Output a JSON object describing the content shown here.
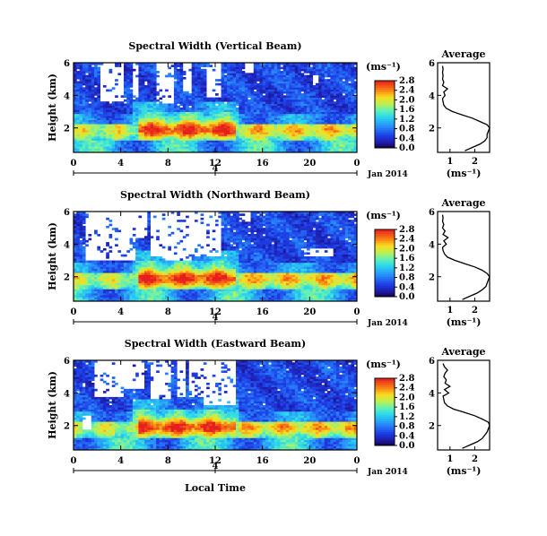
{
  "x_axis_label": "Local Time",
  "date_label": "Jan 2014",
  "unit_label": "(ms⁻¹)",
  "avg_title": "Average",
  "y_label": "Height (km)",
  "chart_data": [
    {
      "type": "heatmap",
      "title": "Spectral Width (Vertical Beam)",
      "ylabel": "Height (km)",
      "xlabel": "Local Time",
      "x_ticks": [
        "0",
        "4",
        "8",
        "12",
        "16",
        "20",
        "0"
      ],
      "xlim": [
        0,
        24
      ],
      "day_marker": "4",
      "y_ticks": [
        "2",
        "4",
        "6"
      ],
      "ylim": [
        0.5,
        6
      ],
      "colorbar": {
        "label": "(ms⁻¹)",
        "ticks": [
          "0.0",
          "0.4",
          "0.8",
          "1.2",
          "1.6",
          "2.0",
          "2.4",
          "2.8"
        ],
        "range": [
          0,
          2.8
        ]
      },
      "average_profile": {
        "title": "Average",
        "xlabel": "(ms⁻¹)",
        "x_ticks": [
          "1",
          "2"
        ],
        "xlim": [
          0.5,
          2.6
        ],
        "y_ticks": [
          "2",
          "4",
          "6"
        ],
        "ylim": [
          0.5,
          6
        ],
        "height": [
          0.6,
          0.8,
          1.0,
          1.2,
          1.4,
          1.6,
          1.8,
          2.0,
          2.2,
          2.4,
          2.6,
          2.8,
          3.0,
          3.2,
          3.4,
          3.6,
          3.8,
          4.0,
          4.2,
          4.4,
          4.6,
          4.8,
          5.0,
          5.2,
          5.4,
          5.6,
          5.8
        ],
        "width": [
          1.6,
          1.9,
          2.2,
          2.4,
          2.5,
          2.5,
          2.55,
          2.6,
          2.5,
          2.2,
          1.9,
          1.5,
          1.1,
          0.85,
          0.75,
          0.72,
          0.7,
          0.8,
          0.75,
          0.9,
          0.7,
          0.75,
          0.7,
          0.72,
          0.7,
          0.72,
          0.7
        ]
      }
    },
    {
      "type": "heatmap",
      "title": "Spectral Width (Northward Beam)",
      "ylabel": "Height (km)",
      "xlabel": "Local Time",
      "x_ticks": [
        "0",
        "4",
        "8",
        "12",
        "16",
        "20",
        "0"
      ],
      "xlim": [
        0,
        24
      ],
      "day_marker": "4",
      "y_ticks": [
        "2",
        "4",
        "6"
      ],
      "ylim": [
        0.5,
        6
      ],
      "colorbar": {
        "label": "(ms⁻¹)",
        "ticks": [
          "0.0",
          "0.4",
          "0.8",
          "1.2",
          "1.6",
          "2.0",
          "2.4",
          "2.8"
        ],
        "range": [
          0,
          2.8
        ]
      },
      "average_profile": {
        "title": "Average",
        "xlabel": "(ms⁻¹)",
        "x_ticks": [
          "1",
          "2"
        ],
        "xlim": [
          0.5,
          2.6
        ],
        "y_ticks": [
          "2",
          "4",
          "6"
        ],
        "ylim": [
          0.5,
          6
        ],
        "height": [
          0.6,
          0.8,
          1.0,
          1.2,
          1.4,
          1.6,
          1.8,
          2.0,
          2.2,
          2.4,
          2.6,
          2.8,
          3.0,
          3.2,
          3.4,
          3.6,
          3.8,
          4.0,
          4.2,
          4.4,
          4.6,
          4.8,
          5.0,
          5.2,
          5.4,
          5.6,
          5.8
        ],
        "width": [
          1.5,
          1.8,
          2.1,
          2.3,
          2.45,
          2.5,
          2.55,
          2.6,
          2.5,
          2.3,
          2.0,
          1.6,
          1.2,
          0.9,
          0.78,
          0.72,
          0.7,
          0.85,
          0.75,
          0.92,
          0.72,
          0.8,
          0.7,
          0.75,
          0.7,
          0.72,
          0.7
        ]
      }
    },
    {
      "type": "heatmap",
      "title": "Spectral Width (Eastward Beam)",
      "ylabel": "Height (km)",
      "xlabel": "Local Time",
      "x_ticks": [
        "0",
        "4",
        "8",
        "12",
        "16",
        "20",
        "0"
      ],
      "xlim": [
        0,
        24
      ],
      "day_marker": "4",
      "y_ticks": [
        "2",
        "4",
        "6"
      ],
      "ylim": [
        0.5,
        6
      ],
      "colorbar": {
        "label": "(ms⁻¹)",
        "ticks": [
          "0.0",
          "0.4",
          "0.8",
          "1.2",
          "1.6",
          "2.0",
          "2.4",
          "2.8"
        ],
        "range": [
          0,
          2.8
        ]
      },
      "average_profile": {
        "title": "Average",
        "xlabel": "(ms⁻¹)",
        "x_ticks": [
          "1",
          "2"
        ],
        "xlim": [
          0.5,
          2.6
        ],
        "y_ticks": [
          "2",
          "4",
          "6"
        ],
        "ylim": [
          0.5,
          6
        ],
        "height": [
          0.6,
          0.8,
          1.0,
          1.2,
          1.4,
          1.6,
          1.8,
          2.0,
          2.2,
          2.4,
          2.6,
          2.8,
          3.0,
          3.2,
          3.4,
          3.6,
          3.8,
          4.0,
          4.2,
          4.4,
          4.6,
          4.8,
          5.0,
          5.2,
          5.4,
          5.6,
          5.8
        ],
        "width": [
          1.5,
          1.8,
          2.1,
          2.3,
          2.4,
          2.5,
          2.55,
          2.6,
          2.55,
          2.3,
          2.0,
          1.6,
          1.15,
          0.9,
          0.78,
          0.75,
          0.72,
          0.95,
          0.78,
          1.0,
          0.8,
          0.85,
          0.75,
          0.8,
          0.9,
          0.78,
          0.72
        ]
      }
    }
  ]
}
